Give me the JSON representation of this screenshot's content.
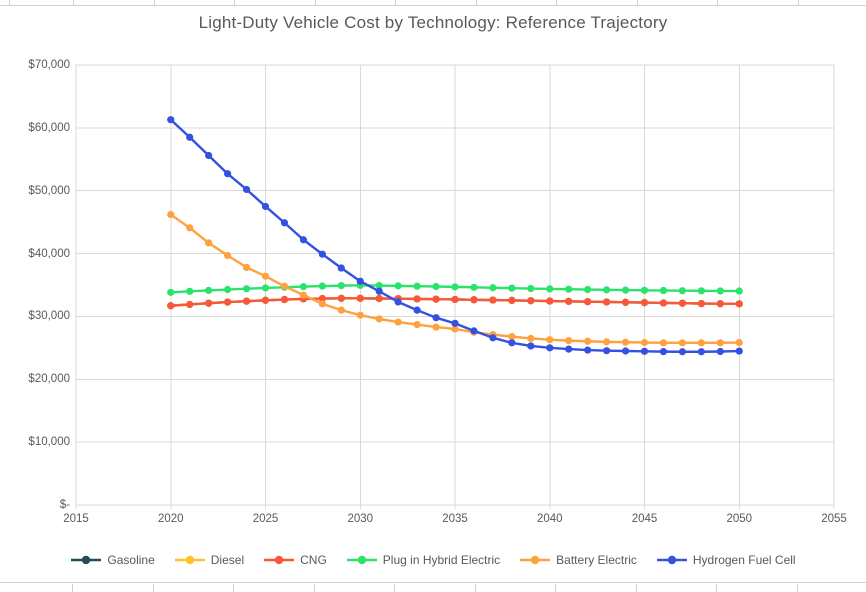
{
  "chart": {
    "title": "Light-Duty Vehicle Cost by Technology: Reference Trajectory"
  },
  "chart_data": {
    "type": "line",
    "title": "Light-Duty Vehicle Cost by Technology: Reference Trajectory",
    "xlabel": "",
    "ylabel": "",
    "grid": "both",
    "legend_position": "bottom",
    "marker": "circle",
    "x_axis": {
      "min": 2015,
      "max": 2055,
      "tick_step": 5,
      "tick_labels": [
        "2015",
        "2020",
        "2025",
        "2030",
        "2035",
        "2040",
        "2045",
        "2050",
        "2055"
      ]
    },
    "y_axis": {
      "min": 0,
      "max": 70000,
      "tick_step": 10000,
      "tick_labels": [
        "$-",
        "$10,000",
        "$20,000",
        "$30,000",
        "$40,000",
        "$50,000",
        "$60,000",
        "$70,000"
      ]
    },
    "x": [
      2020,
      2021,
      2022,
      2023,
      2024,
      2025,
      2026,
      2027,
      2028,
      2029,
      2030,
      2031,
      2032,
      2033,
      2034,
      2035,
      2036,
      2037,
      2038,
      2039,
      2040,
      2041,
      2042,
      2043,
      2044,
      2045,
      2046,
      2047,
      2048,
      2049,
      2050
    ],
    "series": [
      {
        "name": "Gasoline",
        "color": "#1f4e5f",
        "note": "line coincides with CNG values and is hidden beneath it",
        "values": [
          31700,
          31900,
          32100,
          32280,
          32430,
          32570,
          32690,
          32790,
          32850,
          32880,
          32880,
          32850,
          32820,
          32780,
          32740,
          32700,
          32650,
          32600,
          32550,
          32500,
          32450,
          32400,
          32350,
          32300,
          32250,
          32200,
          32150,
          32100,
          32050,
          32020,
          32000
        ]
      },
      {
        "name": "Diesel",
        "color": "#ffc328",
        "note": "line coincides with CNG values and is hidden beneath it",
        "values": [
          31700,
          31900,
          32100,
          32280,
          32430,
          32570,
          32690,
          32790,
          32850,
          32880,
          32880,
          32850,
          32820,
          32780,
          32740,
          32700,
          32650,
          32600,
          32550,
          32500,
          32450,
          32400,
          32350,
          32300,
          32250,
          32200,
          32150,
          32100,
          32050,
          32020,
          32000
        ]
      },
      {
        "name": "CNG",
        "color": "#f9573b",
        "values": [
          31700,
          31900,
          32100,
          32280,
          32430,
          32570,
          32690,
          32790,
          32850,
          32880,
          32880,
          32850,
          32820,
          32780,
          32740,
          32700,
          32650,
          32600,
          32550,
          32500,
          32450,
          32400,
          32350,
          32300,
          32250,
          32200,
          32150,
          32100,
          32050,
          32020,
          32000
        ]
      },
      {
        "name": "Plug in Hybrid Electric",
        "color": "#2be36c",
        "values": [
          33830,
          33990,
          34140,
          34280,
          34410,
          34530,
          34640,
          34740,
          34830,
          34900,
          34950,
          34910,
          34860,
          34810,
          34760,
          34700,
          34630,
          34560,
          34500,
          34440,
          34380,
          34330,
          34280,
          34230,
          34190,
          34150,
          34120,
          34090,
          34070,
          34050,
          34040
        ]
      },
      {
        "name": "Battery Electric",
        "color": "#ffa13d",
        "values": [
          46200,
          44100,
          41700,
          39700,
          37800,
          36400,
          34800,
          33400,
          32000,
          31000,
          30200,
          29600,
          29100,
          28700,
          28300,
          28000,
          27500,
          27100,
          26800,
          26500,
          26300,
          26150,
          26050,
          25950,
          25900,
          25850,
          25800,
          25800,
          25800,
          25800,
          25850
        ]
      },
      {
        "name": "Hydrogen Fuel Cell",
        "color": "#3451e1",
        "values": [
          61300,
          58500,
          55600,
          52700,
          50200,
          47500,
          44900,
          42200,
          39900,
          37700,
          35600,
          34000,
          32300,
          31000,
          29800,
          28900,
          27700,
          26600,
          25800,
          25300,
          25000,
          24800,
          24650,
          24550,
          24500,
          24450,
          24400,
          24380,
          24380,
          24420,
          24490
        ]
      }
    ]
  },
  "colors": {
    "gridline": "#d9d9d9",
    "plot_border": "#d9d9d9",
    "axis_text": "#595959",
    "title_text": "#595959",
    "sheet_grid": "#d0d0d0"
  }
}
